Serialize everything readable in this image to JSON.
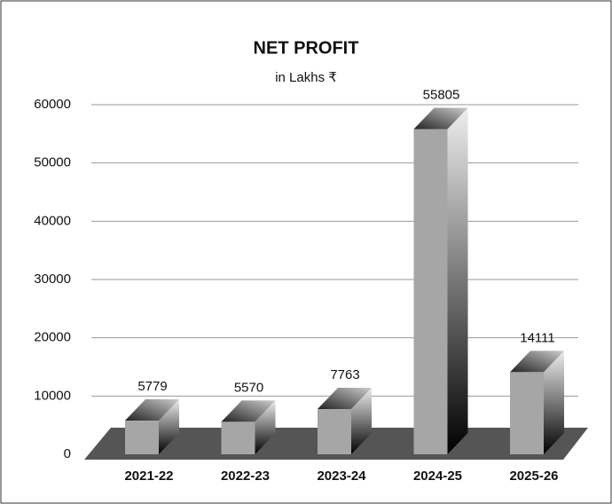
{
  "chart_data": {
    "type": "bar3d",
    "title": "NET PROFIT",
    "subtitle": "in Lakhs ₹",
    "categories": [
      "2021-22",
      "2022-23",
      "2023-24",
      "2024-25",
      "2025-26"
    ],
    "values": [
      5779,
      5570,
      7763,
      55805,
      14111
    ],
    "color": "#a6a6a6",
    "ylim": [
      0,
      60000
    ],
    "yticks": [
      0,
      10000,
      20000,
      30000,
      40000,
      50000,
      60000
    ],
    "grid": true
  }
}
